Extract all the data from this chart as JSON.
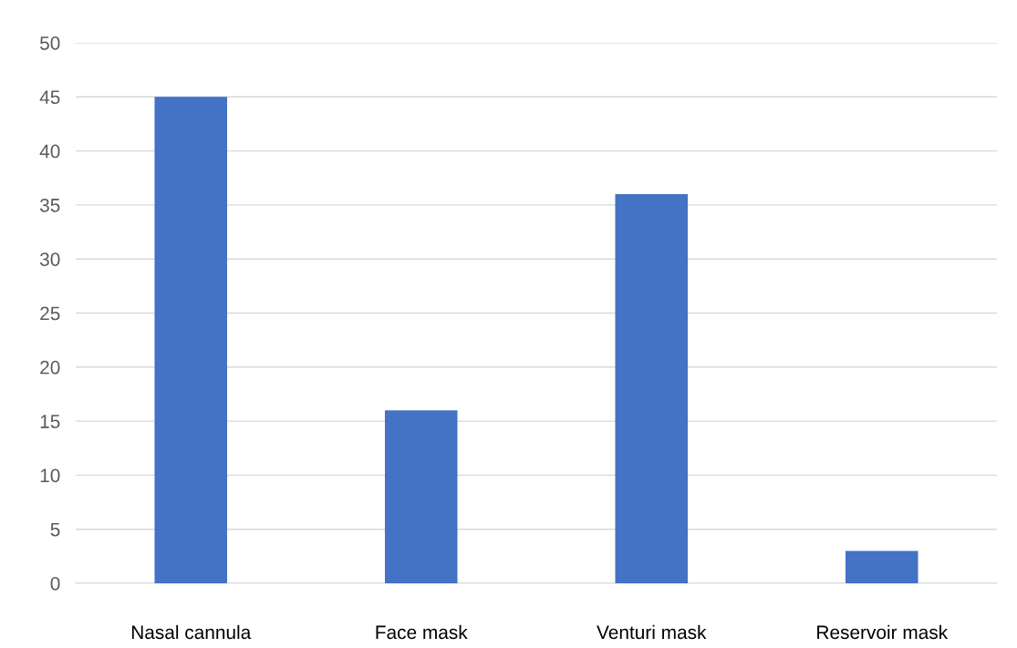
{
  "chart_data": {
    "type": "bar",
    "categories": [
      "Nasal cannula",
      "Face mask",
      "Venturi mask",
      "Reservoir mask"
    ],
    "values": [
      45,
      16,
      36,
      3
    ],
    "color": "#4472c4",
    "ylim": [
      0,
      50
    ],
    "yticks": [
      0,
      5,
      10,
      15,
      20,
      25,
      30,
      35,
      40,
      45,
      50
    ],
    "grid": "y",
    "legend": false
  }
}
